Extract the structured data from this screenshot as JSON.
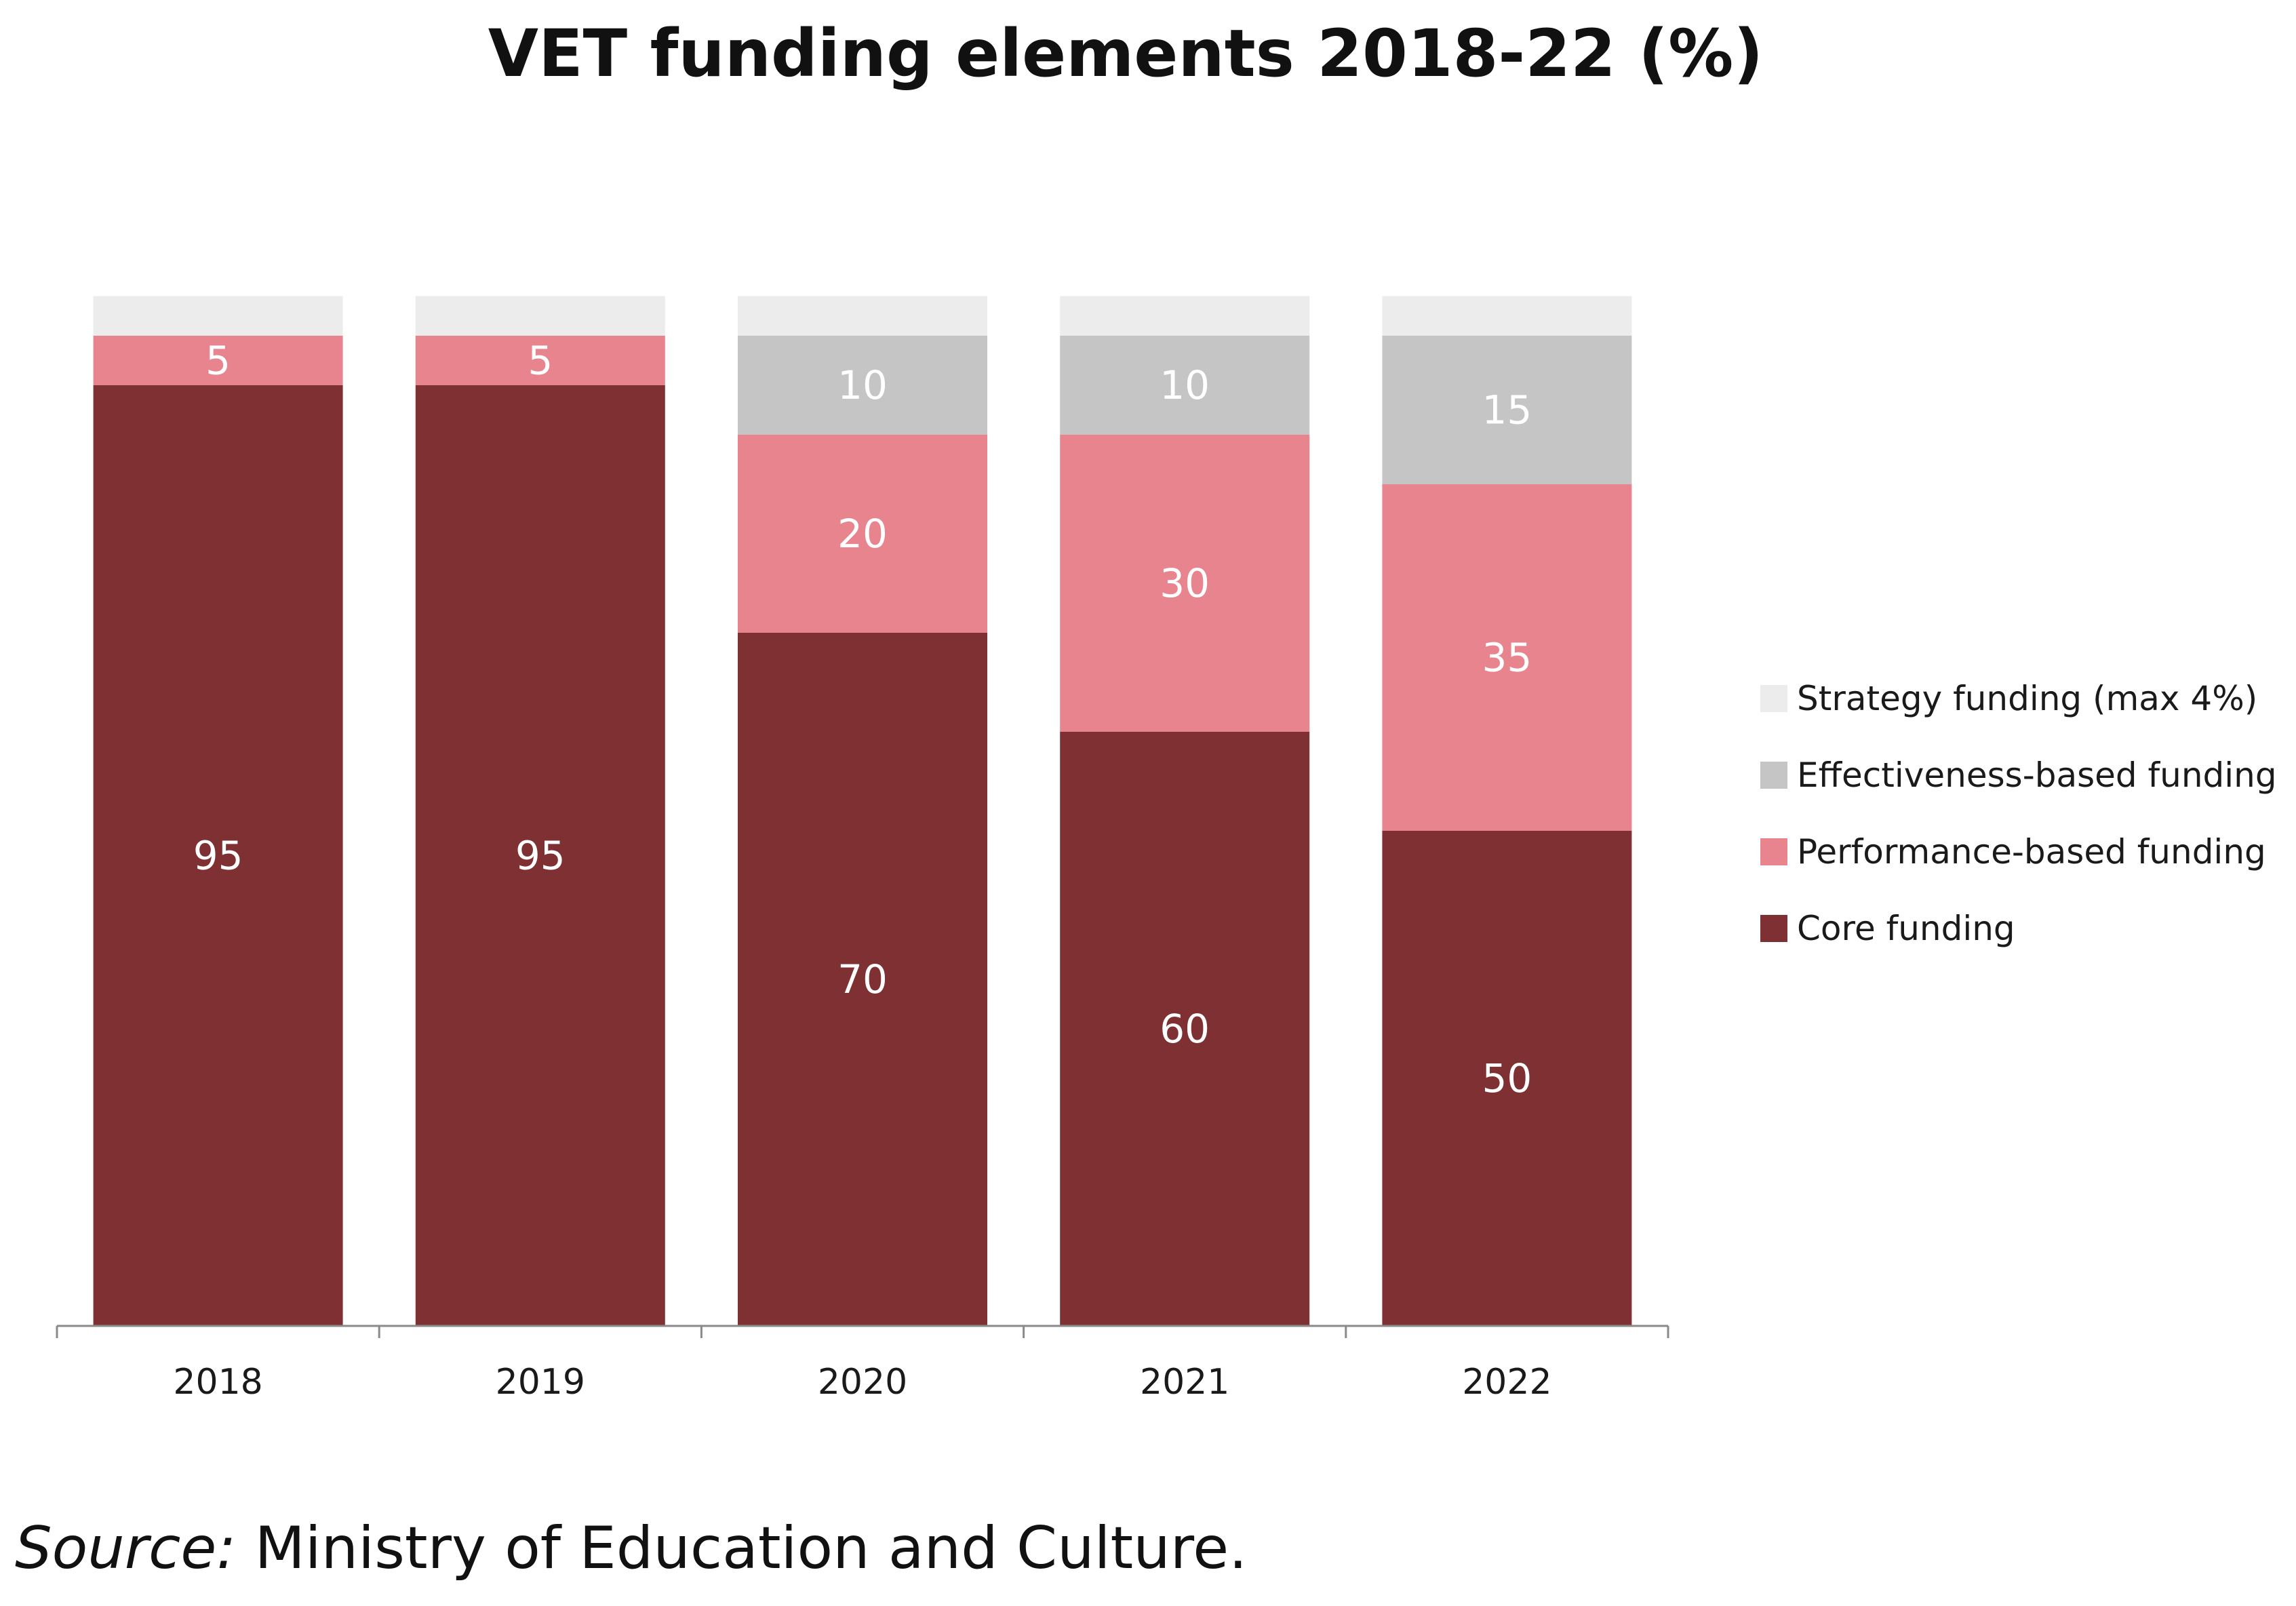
{
  "chart_data": {
    "type": "bar",
    "stacked": true,
    "title": "VET funding elements 2018-22 (%)",
    "xlabel": "",
    "ylabel": "",
    "ylim": [
      0,
      104
    ],
    "categories": [
      "2018",
      "2019",
      "2020",
      "2021",
      "2022"
    ],
    "series": [
      {
        "name": "Core funding",
        "color": "#7f3033",
        "values": [
          95,
          95,
          70,
          60,
          50
        ],
        "labels": [
          "95",
          "95",
          "70",
          "60",
          "50"
        ]
      },
      {
        "name": "Performance-based funding",
        "color": "#e8848d",
        "values": [
          5,
          5,
          20,
          30,
          35
        ],
        "labels": [
          "5",
          "5",
          "20",
          "30",
          "35"
        ]
      },
      {
        "name": "Effectiveness-based funding",
        "color": "#c6c5c6",
        "values": [
          0,
          0,
          10,
          10,
          15
        ],
        "labels": [
          "",
          "",
          "10",
          "10",
          "15"
        ]
      },
      {
        "name": "Strategy funding (max 4%)",
        "color": "#ececec",
        "values": [
          4,
          4,
          4,
          4,
          4
        ],
        "labels": [
          "",
          "",
          "",
          "",
          ""
        ]
      }
    ],
    "legend_order": [
      "Strategy funding (max 4%)",
      "Effectiveness-based funding",
      "Performance-based funding",
      "Core funding"
    ],
    "legend_position": "right",
    "grid": false
  },
  "source": {
    "label": "Source:",
    "text": " Ministry of Education and Culture."
  }
}
